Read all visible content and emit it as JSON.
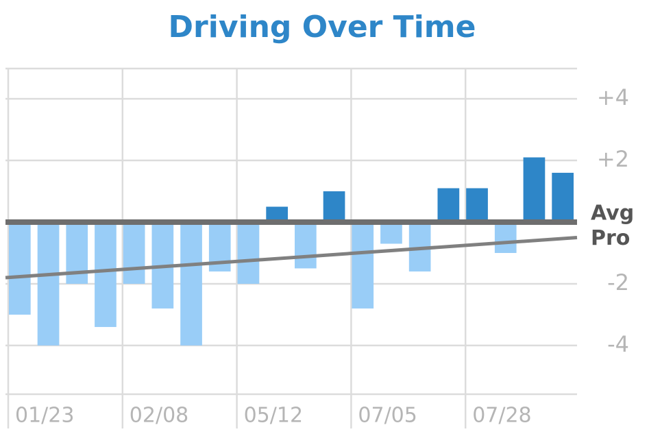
{
  "chart_data": {
    "type": "bar",
    "title": "Driving Over Time",
    "categories": [
      "01/23",
      null,
      null,
      null,
      "02/08",
      null,
      null,
      null,
      "05/12",
      null,
      null,
      null,
      "07/05",
      null,
      null,
      null,
      "07/28",
      null,
      null,
      null
    ],
    "values": [
      -3.0,
      -4.0,
      -2.0,
      -3.4,
      -2.0,
      -2.8,
      -4.0,
      -1.6,
      -2.0,
      0.5,
      -1.5,
      1.0,
      -2.8,
      -0.7,
      -1.6,
      1.1,
      1.1,
      -1.0,
      2.1,
      1.6
    ],
    "positive_color": "#2e86c8",
    "negative_color": "#99cdf7",
    "ylim": [
      -5.58,
      4.98
    ],
    "yticks": [
      {
        "value": 4,
        "label": "+4"
      },
      {
        "value": 2,
        "label": "+2"
      },
      -2,
      -4
    ],
    "reference_lines": [
      {
        "label": "Avg",
        "values": [
          0,
          0
        ],
        "color": "#6e6e6e"
      },
      {
        "label": "Pro",
        "values": [
          -1.8,
          -0.5
        ],
        "color": "#808080"
      }
    ],
    "grid": true
  }
}
